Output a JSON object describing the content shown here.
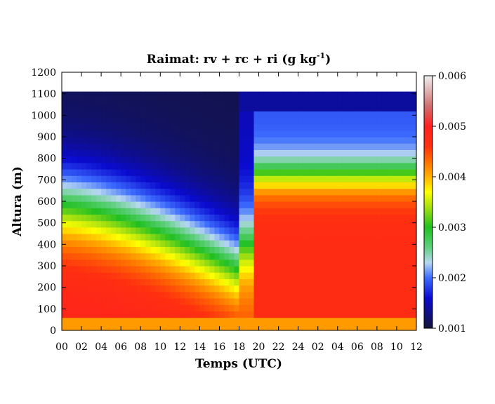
{
  "chart_data": {
    "type": "heatmap",
    "title_main": "Raimat: rv + rc + ri (g kg",
    "title_sup": "-1",
    "title_tail": ")",
    "xlabel": "Temps (UTC)",
    "ylabel": "Altura (m)",
    "x_tick_labels": [
      "00",
      "02",
      "04",
      "06",
      "08",
      "10",
      "12",
      "14",
      "16",
      "18",
      "20",
      "22",
      "24",
      "02",
      "04",
      "06",
      "08",
      "10",
      "12"
    ],
    "xlim_hours": [
      0,
      36
    ],
    "y_ticks": [
      0,
      100,
      200,
      300,
      400,
      500,
      600,
      700,
      800,
      900,
      1000,
      1100,
      1200
    ],
    "ylim": [
      0,
      1200
    ],
    "data_top_m": 1110,
    "colorbar": {
      "min": 0.001,
      "max": 0.006,
      "ticks": [
        "0.001",
        "0.002",
        "0.003",
        "0.004",
        "0.005",
        "0.006"
      ],
      "stops": [
        {
          "v": 0.001,
          "color": "#141438"
        },
        {
          "v": 0.0016,
          "color": "#0a0ad0"
        },
        {
          "v": 0.002,
          "color": "#3c6cff"
        },
        {
          "v": 0.0023,
          "color": "#b8d8f0"
        },
        {
          "v": 0.0026,
          "color": "#60d080"
        },
        {
          "v": 0.003,
          "color": "#20c020"
        },
        {
          "v": 0.0034,
          "color": "#a8e010"
        },
        {
          "v": 0.0037,
          "color": "#ffff00"
        },
        {
          "v": 0.004,
          "color": "#ffb000"
        },
        {
          "v": 0.0043,
          "color": "#ff7000"
        },
        {
          "v": 0.0046,
          "color": "#ff3010"
        },
        {
          "v": 0.005,
          "color": "#ff2020"
        },
        {
          "v": 0.0054,
          "color": "#d07070"
        },
        {
          "v": 0.006,
          "color": "#f0f0f0"
        }
      ]
    },
    "grid": false
  }
}
